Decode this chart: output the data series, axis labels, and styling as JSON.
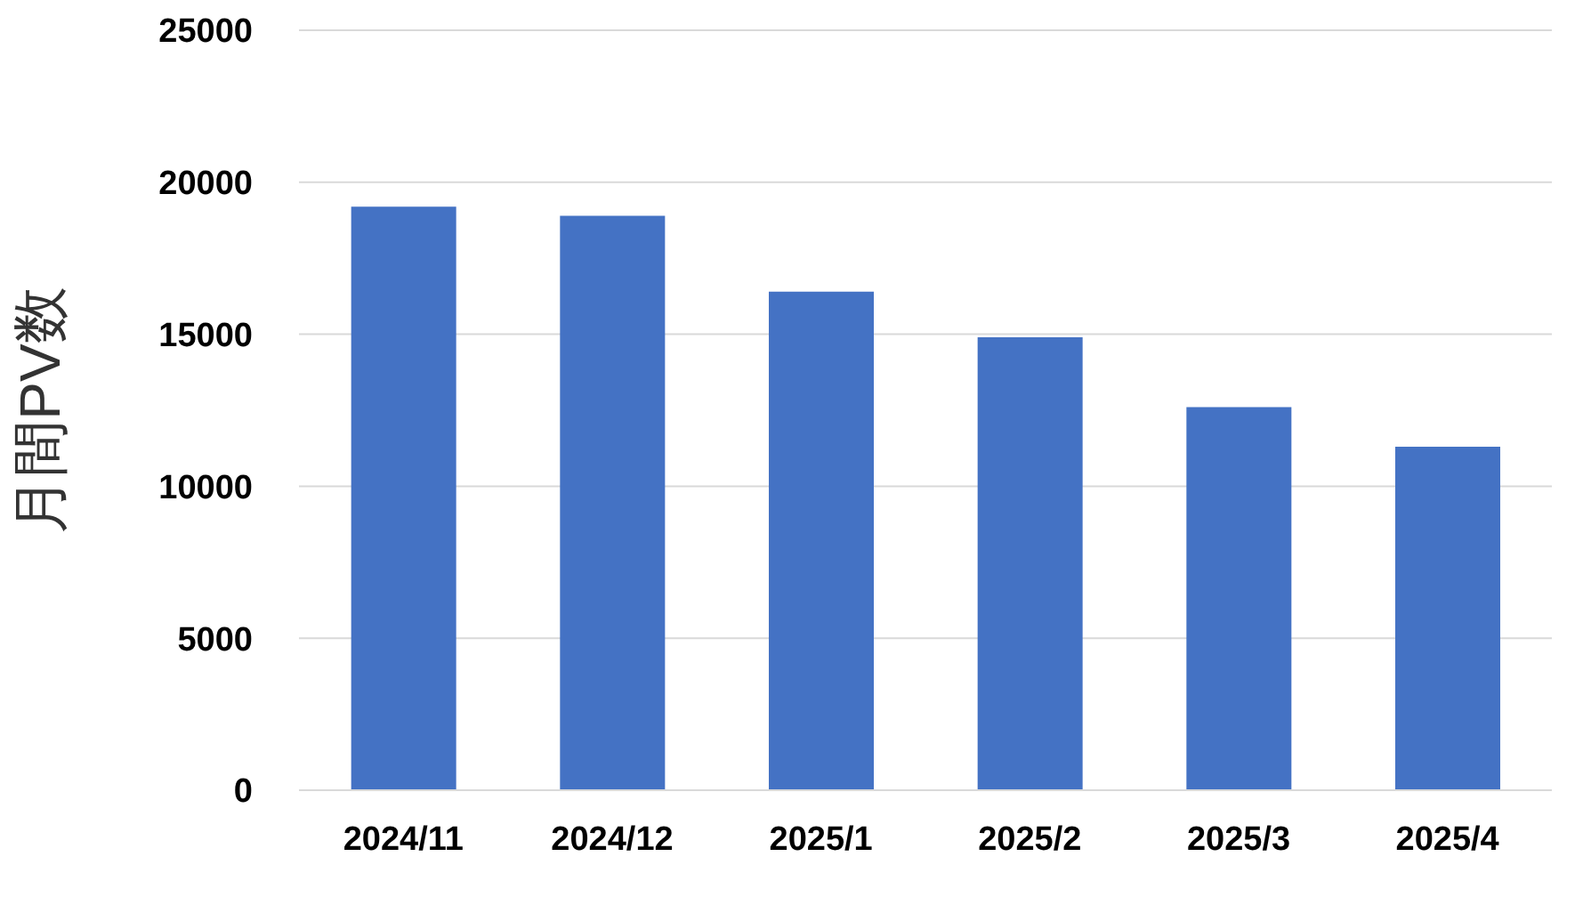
{
  "chart_data": {
    "type": "bar",
    "ylabel": "月間PV数",
    "categories": [
      "2024/11",
      "2024/12",
      "2025/1",
      "2025/2",
      "2025/3",
      "2025/4"
    ],
    "values": [
      19200,
      18900,
      16400,
      14900,
      12600,
      11300
    ],
    "color": "#4472c4",
    "ylim": [
      0,
      25000
    ],
    "yticks": [
      0,
      5000,
      10000,
      15000,
      20000,
      25000
    ],
    "grid": "y"
  }
}
